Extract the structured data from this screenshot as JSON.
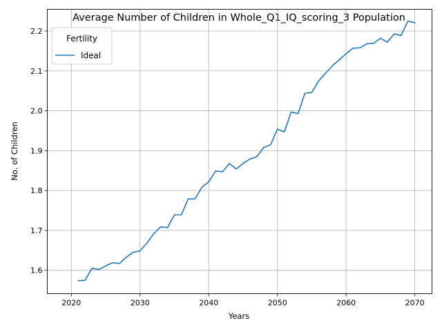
{
  "chart_data": {
    "type": "line",
    "title": "Average Number of Children in Whole_Q1_IQ_scoring_3 Population",
    "xlabel": "Years",
    "ylabel": "No. of Children",
    "xlim": [
      2016.5,
      2072.5
    ],
    "ylim": [
      1.5415,
      2.2545
    ],
    "xticks": [
      2020,
      2030,
      2040,
      2050,
      2060,
      2070
    ],
    "yticks": [
      1.6,
      1.7,
      1.8,
      1.9,
      2.0,
      2.1,
      2.2
    ],
    "grid": true,
    "legend": {
      "title": "Fertility",
      "placement": "top-left"
    },
    "series": [
      {
        "name": "Ideal",
        "color": "#1f77b4",
        "x": [
          2021,
          2022,
          2023,
          2024,
          2025,
          2026,
          2027,
          2028,
          2029,
          2030,
          2031,
          2032,
          2033,
          2034,
          2035,
          2036,
          2037,
          2038,
          2039,
          2040,
          2041,
          2042,
          2043,
          2044,
          2045,
          2046,
          2047,
          2048,
          2049,
          2050,
          2051,
          2052,
          2053,
          2054,
          2055,
          2056,
          2057,
          2058,
          2059,
          2060,
          2061,
          2062,
          2063,
          2064,
          2065,
          2066,
          2067,
          2068,
          2069,
          2070
        ],
        "values": [
          1.574,
          1.575,
          1.605,
          1.602,
          1.611,
          1.619,
          1.617,
          1.633,
          1.645,
          1.649,
          1.668,
          1.692,
          1.709,
          1.707,
          1.739,
          1.739,
          1.779,
          1.779,
          1.808,
          1.822,
          1.849,
          1.847,
          1.868,
          1.854,
          1.868,
          1.879,
          1.885,
          1.908,
          1.915,
          1.954,
          1.947,
          1.997,
          1.993,
          2.044,
          2.046,
          2.075,
          2.094,
          2.113,
          2.128,
          2.143,
          2.157,
          2.158,
          2.168,
          2.169,
          2.182,
          2.172,
          2.193,
          2.189,
          2.225,
          2.221
        ]
      }
    ]
  }
}
